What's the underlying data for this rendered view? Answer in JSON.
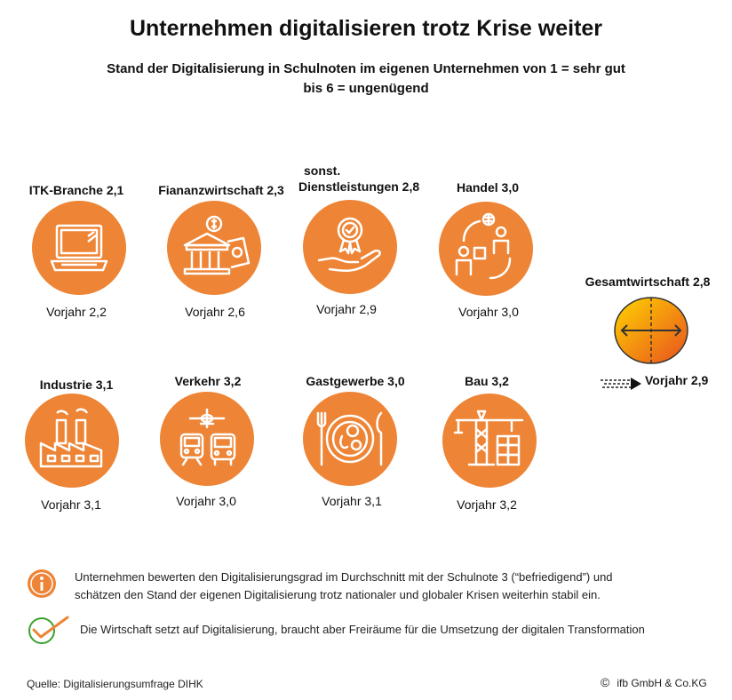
{
  "title": "Unternehmen digitalisieren trotz Krise weiter",
  "subtitle_line1": "Stand der Digitalisierung in Schulnoten im eigenen Unternehmen von 1 = sehr gut",
  "subtitle_line2": "bis 6 = ungenügend",
  "sectors": [
    {
      "label": "ITK-Branche 2,1",
      "previous": "Vorjahr 2,2",
      "icon": "laptop-icon"
    },
    {
      "label": "Fiananzwirtschaft 2,3",
      "previous": "Vorjahr 2,6",
      "icon": "bank-icon"
    },
    {
      "label_line1": "sonst.",
      "label_line2": "Dienstleistungen 2,8",
      "previous": "Vorjahr 2,9",
      "icon": "award-hand-icon"
    },
    {
      "label": "Handel 3,0",
      "previous": "Vorjahr 3,0",
      "icon": "trade-icon"
    },
    {
      "label": "Industrie 3,1",
      "previous": "Vorjahr 3,1",
      "icon": "factory-icon"
    },
    {
      "label": "Verkehr 3,2",
      "previous": "Vorjahr 3,0",
      "icon": "transport-icon"
    },
    {
      "label": "Gastgewerbe 3,0",
      "previous": "Vorjahr 3,1",
      "icon": "dining-icon"
    },
    {
      "label": "Bau 3,2",
      "previous": "Vorjahr 3,2",
      "icon": "crane-icon"
    }
  ],
  "overall": {
    "label": "Gesamtwirtschaft 2,8",
    "previous": "Vorjahr 2,9"
  },
  "notes": {
    "info_line1": "Unternehmen bewerten den Digitalisierungsgrad im Durchschnitt mit der Schulnote 3 (“befriedigend”) und",
    "info_line2": "schätzen den Stand der eigenen Digitalisierung trotz nationaler und globaler Krisen weiterhin stabil ein.",
    "check": "Die Wirtschaft setzt auf Digitalisierung, braucht aber Freiräume für die Umsetzung der digitalen Transformation"
  },
  "footer": {
    "source": "Quelle: Digitalisierungsumfrage DIHK",
    "copyright_symbol": "©",
    "company": "ifb GmbH & Co.KG"
  },
  "colors": {
    "accent": "#ee8435",
    "gradient_start": "#ffd400",
    "gradient_end": "#e8501f"
  }
}
